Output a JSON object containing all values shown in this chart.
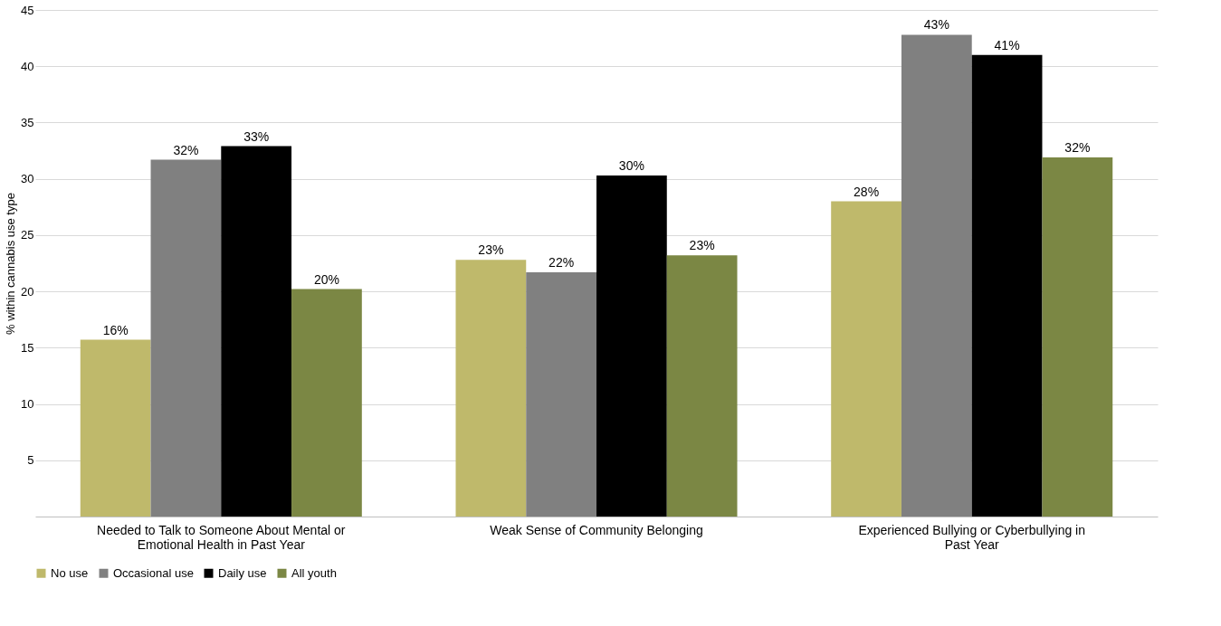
{
  "chart_data": {
    "type": "bar",
    "ylabel": "% within cannabis use type",
    "categories": [
      "Needed to Talk to Someone About Mental or Emotional Health in Past Year",
      "Weak Sense of Community Belonging",
      "Experienced Bullying or Cyberbullying in Past Year"
    ],
    "series": [
      {
        "name": "No use",
        "color": "#bfb96b",
        "values": [
          15.7,
          22.8,
          28.0
        ],
        "value_labels": [
          "16%",
          "23%",
          "28%"
        ]
      },
      {
        "name": "Occasional use",
        "color": "#808080",
        "values": [
          31.7,
          21.7,
          42.8
        ],
        "value_labels": [
          "32%",
          "22%",
          "43%"
        ]
      },
      {
        "name": "Daily use",
        "color": "#000000",
        "values": [
          32.9,
          30.3,
          41.0
        ],
        "value_labels": [
          "33%",
          "30%",
          "41%"
        ]
      },
      {
        "name": "All youth",
        "color": "#7b8744",
        "values": [
          20.2,
          23.2,
          31.9
        ],
        "value_labels": [
          "20%",
          "23%",
          "32%"
        ]
      }
    ],
    "ylim": [
      0,
      45
    ],
    "yticks": [
      5,
      10,
      15,
      20,
      25,
      30,
      35,
      40,
      45
    ],
    "grid": "y",
    "legend": "bottom"
  }
}
